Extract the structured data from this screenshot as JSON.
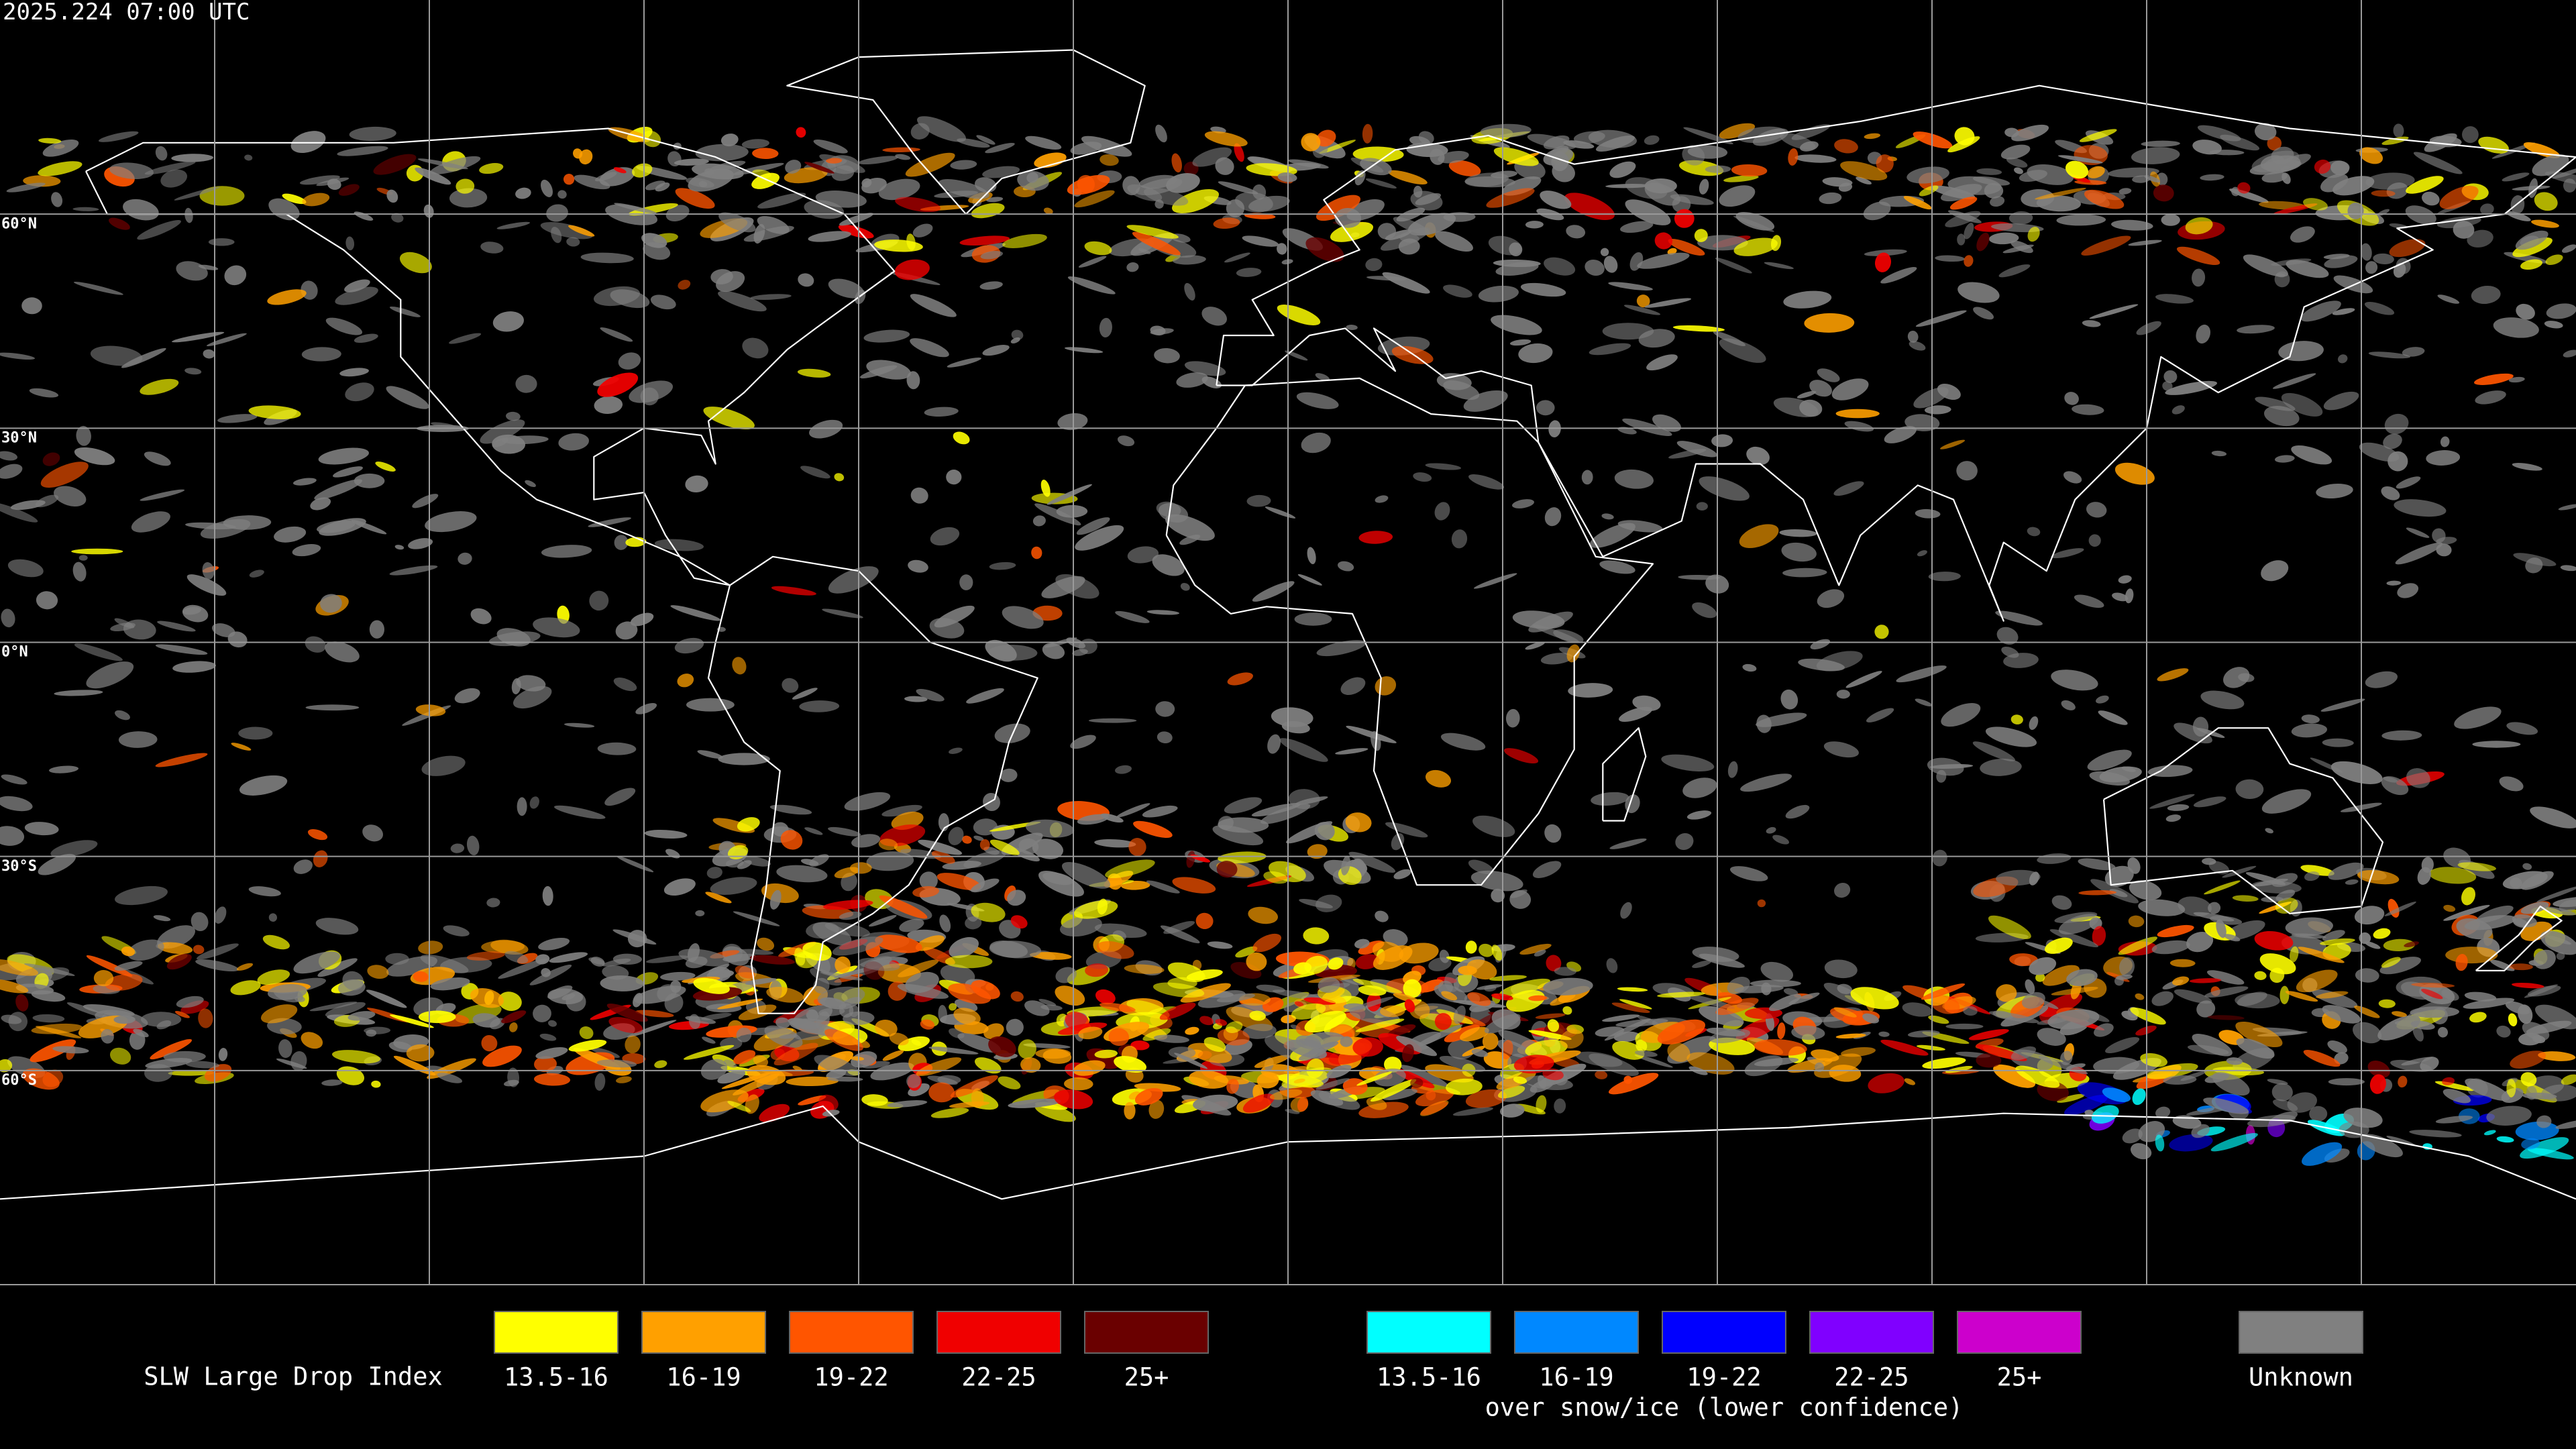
{
  "header": {
    "timestamp": "2025.224 07:00 UTC"
  },
  "map": {
    "lat_labels": [
      "60°N",
      "30°N",
      "0°N",
      "30°S",
      "60°S"
    ]
  },
  "legend": {
    "title": "SLW Large Drop Index",
    "groups": [
      {
        "items": [
          {
            "label": "13.5-16",
            "color": "#ffff00"
          },
          {
            "label": "16-19",
            "color": "#ffa000"
          },
          {
            "label": "19-22",
            "color": "#ff5500"
          },
          {
            "label": "22-25",
            "color": "#f00000"
          },
          {
            "label": "25+",
            "color": "#6a0000"
          }
        ]
      },
      {
        "caption": "over snow/ice (lower confidence)",
        "items": [
          {
            "label": "13.5-16",
            "color": "#00ffff"
          },
          {
            "label": "16-19",
            "color": "#0088ff"
          },
          {
            "label": "19-22",
            "color": "#0000ff"
          },
          {
            "label": "22-25",
            "color": "#8000ff"
          },
          {
            "label": "25+",
            "color": "#cc00cc"
          }
        ]
      },
      {
        "items": [
          {
            "label": "Unknown",
            "color": "#808080"
          }
        ]
      }
    ]
  }
}
